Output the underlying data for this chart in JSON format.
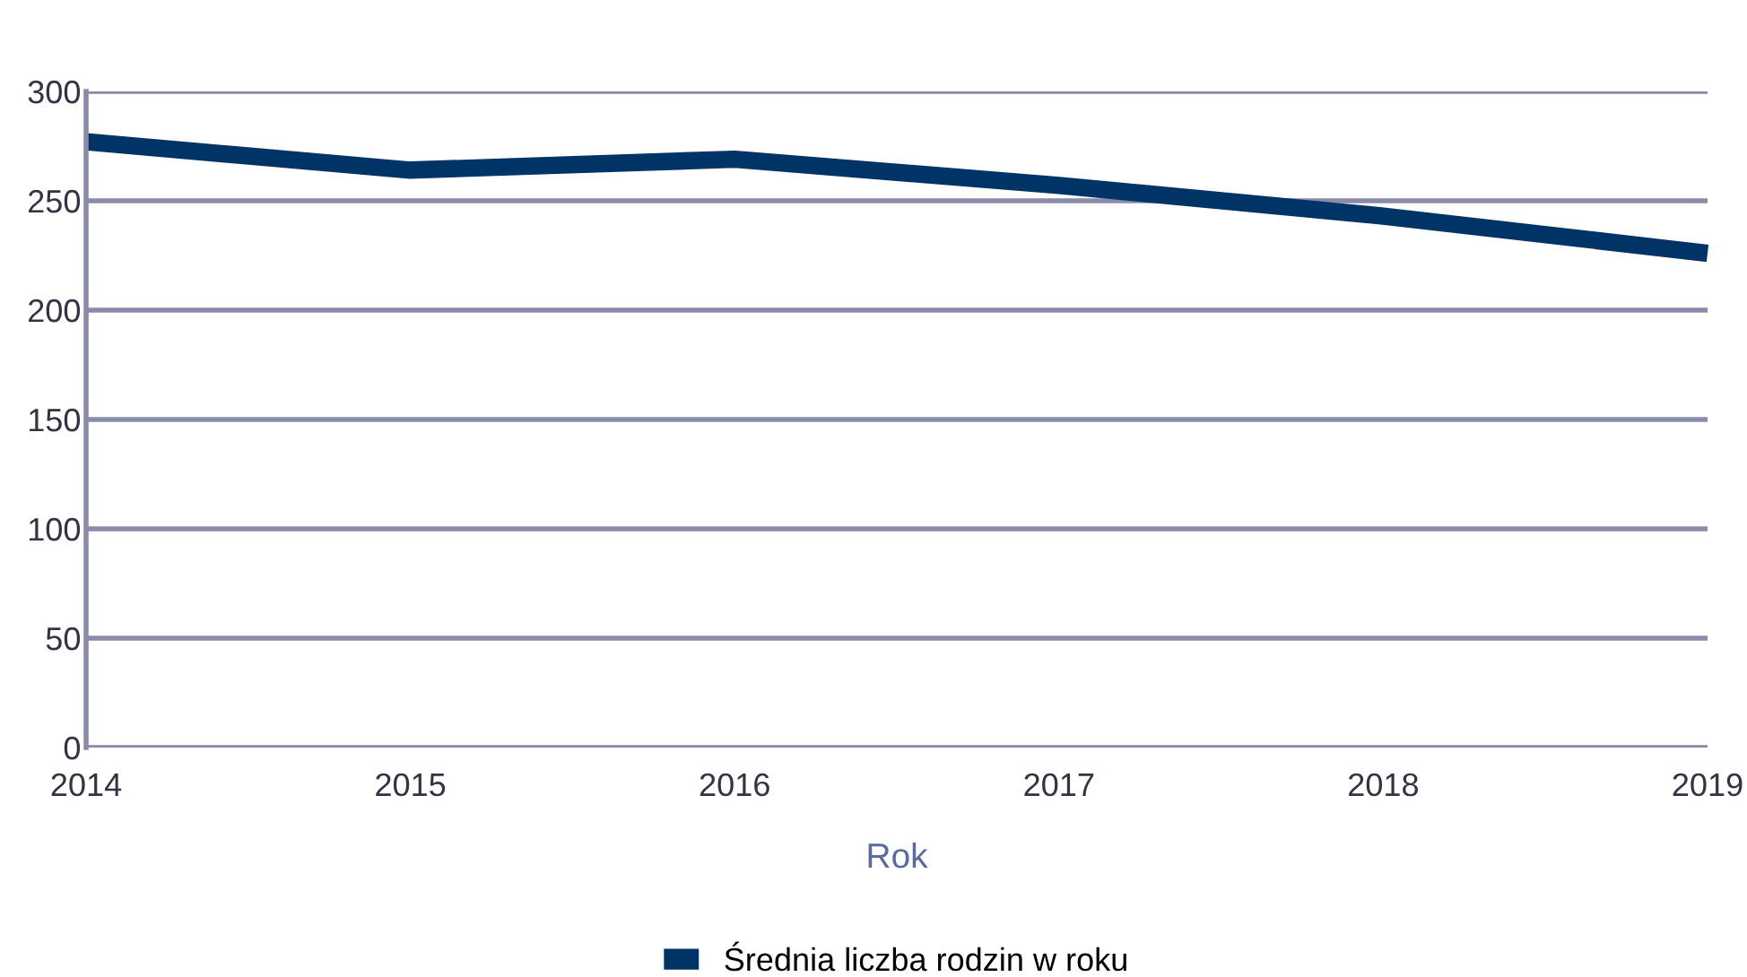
{
  "chart_data": {
    "type": "line",
    "xlabel": "Rok",
    "x": [
      2014,
      2015,
      2016,
      2017,
      2018,
      2019
    ],
    "series": [
      {
        "name": "Średnia liczba rodzin w roku",
        "color": "#003366",
        "values": [
          277,
          264,
          269,
          257,
          243,
          226
        ]
      }
    ],
    "xlim": [
      2014,
      2019
    ],
    "xticks": [
      2014,
      2015,
      2016,
      2017,
      2018,
      2019
    ],
    "ylim": [
      0,
      300
    ],
    "yticks": [
      0,
      50,
      100,
      150,
      200,
      250,
      300
    ],
    "grid": "y",
    "legend": "bottom",
    "marker": "none",
    "line_style": "solid"
  }
}
